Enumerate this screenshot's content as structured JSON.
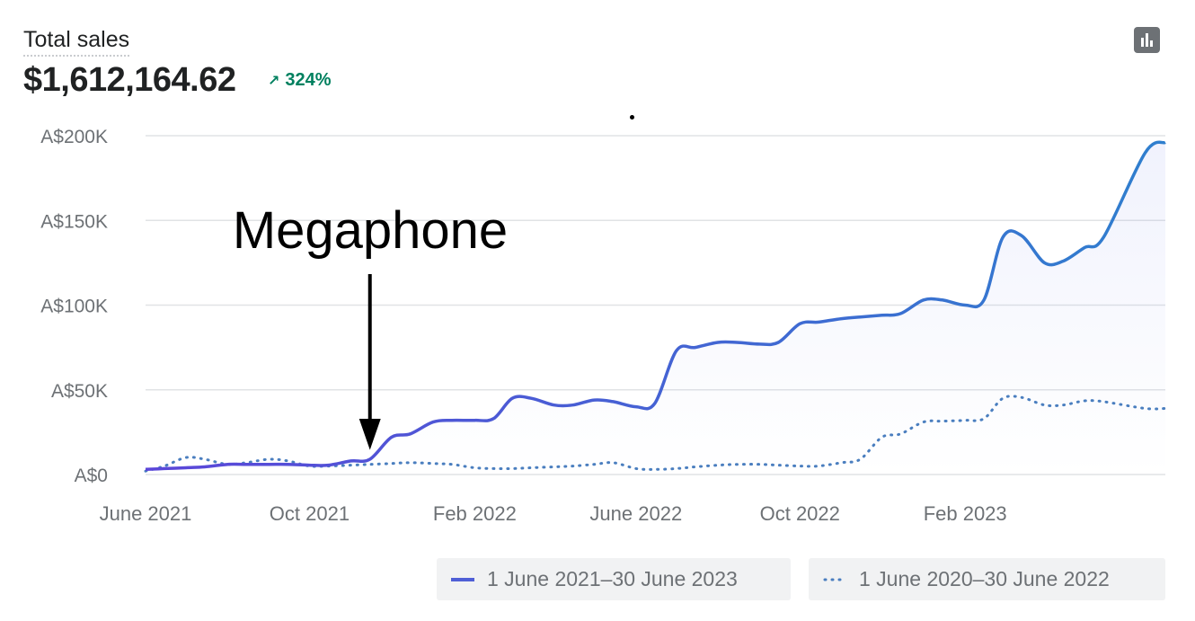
{
  "header": {
    "title": "Total sales",
    "total": "$1,612,164.62",
    "delta_arrow": "↗",
    "delta": "324%",
    "chart_type_icon": "bar-chart-icon"
  },
  "legend": {
    "current": "1 June 2021–30 June 2023",
    "previous": "1 June 2020–30 June 2022"
  },
  "colors": {
    "current_start": "#5b46d9",
    "current_end": "#2f7fce",
    "previous": "#4a7ebf",
    "delta": "#00805f",
    "grid": "#e1e3e5",
    "annotation": "#000000"
  },
  "chart_data": {
    "type": "line",
    "ylim": [
      0,
      200000
    ],
    "y_ticks": [
      {
        "value": 0,
        "label": "A$0"
      },
      {
        "value": 50000,
        "label": "A$50K"
      },
      {
        "value": 100000,
        "label": "A$100K"
      },
      {
        "value": 150000,
        "label": "A$150K"
      },
      {
        "value": 200000,
        "label": "A$200K"
      }
    ],
    "x_range": [
      "2021-06-01",
      "2023-06-30"
    ],
    "x_ticks": [
      {
        "date": "2021-06-01",
        "label": "June 2021"
      },
      {
        "date": "2021-10-01",
        "label": "Oct 2021"
      },
      {
        "date": "2022-02-01",
        "label": "Feb 2022"
      },
      {
        "date": "2022-06-01",
        "label": "June 2022"
      },
      {
        "date": "2022-10-01",
        "label": "Oct 2022"
      },
      {
        "date": "2023-02-01",
        "label": "Feb 2023"
      }
    ],
    "grid": true,
    "legend_position": "bottom-right",
    "series": [
      {
        "name": "1 June 2021–30 June 2023",
        "style": "solid",
        "points": [
          [
            "2021-06-01",
            3000
          ],
          [
            "2021-06-15",
            3500
          ],
          [
            "2021-07-01",
            4000
          ],
          [
            "2021-07-15",
            4500
          ],
          [
            "2021-08-01",
            6000
          ],
          [
            "2021-08-15",
            6000
          ],
          [
            "2021-09-01",
            6000
          ],
          [
            "2021-09-15",
            6000
          ],
          [
            "2021-10-01",
            5500
          ],
          [
            "2021-10-15",
            5500
          ],
          [
            "2021-11-01",
            8000
          ],
          [
            "2021-11-15",
            9000
          ],
          [
            "2021-12-01",
            22000
          ],
          [
            "2021-12-15",
            24000
          ],
          [
            "2022-01-01",
            31000
          ],
          [
            "2022-01-15",
            32000
          ],
          [
            "2022-02-01",
            32000
          ],
          [
            "2022-02-15",
            33000
          ],
          [
            "2022-03-01",
            45000
          ],
          [
            "2022-03-15",
            45000
          ],
          [
            "2022-04-01",
            41000
          ],
          [
            "2022-04-15",
            41000
          ],
          [
            "2022-05-01",
            44000
          ],
          [
            "2022-05-15",
            43000
          ],
          [
            "2022-06-01",
            40000
          ],
          [
            "2022-06-15",
            42000
          ],
          [
            "2022-07-01",
            73000
          ],
          [
            "2022-07-15",
            75000
          ],
          [
            "2022-08-01",
            78000
          ],
          [
            "2022-08-15",
            78000
          ],
          [
            "2022-09-01",
            77000
          ],
          [
            "2022-09-15",
            78000
          ],
          [
            "2022-10-01",
            89000
          ],
          [
            "2022-10-15",
            90000
          ],
          [
            "2022-11-01",
            92000
          ],
          [
            "2022-11-15",
            93000
          ],
          [
            "2022-12-01",
            94000
          ],
          [
            "2022-12-15",
            95000
          ],
          [
            "2023-01-01",
            103000
          ],
          [
            "2023-01-15",
            103000
          ],
          [
            "2023-02-01",
            100000
          ],
          [
            "2023-02-15",
            103000
          ],
          [
            "2023-03-01",
            140000
          ],
          [
            "2023-03-15",
            141000
          ],
          [
            "2023-04-01",
            125000
          ],
          [
            "2023-04-15",
            126000
          ],
          [
            "2023-05-01",
            134000
          ],
          [
            "2023-05-15",
            140000
          ],
          [
            "2023-06-15",
            190000
          ],
          [
            "2023-06-30",
            196000
          ]
        ]
      },
      {
        "name": "1 June 2020–30 June 2022",
        "style": "dotted",
        "points": [
          [
            "2021-06-01",
            2000
          ],
          [
            "2021-06-15",
            5000
          ],
          [
            "2021-07-01",
            10000
          ],
          [
            "2021-07-15",
            9000
          ],
          [
            "2021-08-01",
            6000
          ],
          [
            "2021-08-15",
            7000
          ],
          [
            "2021-09-01",
            9000
          ],
          [
            "2021-09-15",
            8000
          ],
          [
            "2021-10-01",
            5000
          ],
          [
            "2021-10-15",
            5000
          ],
          [
            "2021-11-01",
            5500
          ],
          [
            "2021-11-15",
            6000
          ],
          [
            "2021-12-01",
            6500
          ],
          [
            "2021-12-15",
            7000
          ],
          [
            "2022-01-01",
            6500
          ],
          [
            "2022-01-15",
            6000
          ],
          [
            "2022-02-01",
            4000
          ],
          [
            "2022-02-15",
            3500
          ],
          [
            "2022-03-01",
            3500
          ],
          [
            "2022-03-15",
            4000
          ],
          [
            "2022-04-01",
            4500
          ],
          [
            "2022-04-15",
            5000
          ],
          [
            "2022-05-01",
            6000
          ],
          [
            "2022-05-15",
            7000
          ],
          [
            "2022-06-01",
            3500
          ],
          [
            "2022-06-15",
            3000
          ],
          [
            "2022-07-01",
            3500
          ],
          [
            "2022-07-15",
            4500
          ],
          [
            "2022-08-01",
            5500
          ],
          [
            "2022-08-15",
            6000
          ],
          [
            "2022-09-01",
            6000
          ],
          [
            "2022-09-15",
            5500
          ],
          [
            "2022-10-01",
            5000
          ],
          [
            "2022-10-15",
            5000
          ],
          [
            "2022-11-01",
            7000
          ],
          [
            "2022-11-15",
            9000
          ],
          [
            "2022-12-01",
            22000
          ],
          [
            "2022-12-15",
            24000
          ],
          [
            "2023-01-01",
            31000
          ],
          [
            "2023-01-15",
            31500
          ],
          [
            "2023-02-01",
            32000
          ],
          [
            "2023-02-15",
            33000
          ],
          [
            "2023-03-01",
            45000
          ],
          [
            "2023-03-15",
            45500
          ],
          [
            "2023-04-01",
            41000
          ],
          [
            "2023-04-15",
            41000
          ],
          [
            "2023-05-01",
            43500
          ],
          [
            "2023-05-15",
            43000
          ],
          [
            "2023-06-15",
            39000
          ],
          [
            "2023-06-30",
            39000
          ]
        ]
      }
    ],
    "annotations": [
      {
        "text": "Megaphone",
        "date": "2021-11-15",
        "value": 14000
      }
    ]
  }
}
